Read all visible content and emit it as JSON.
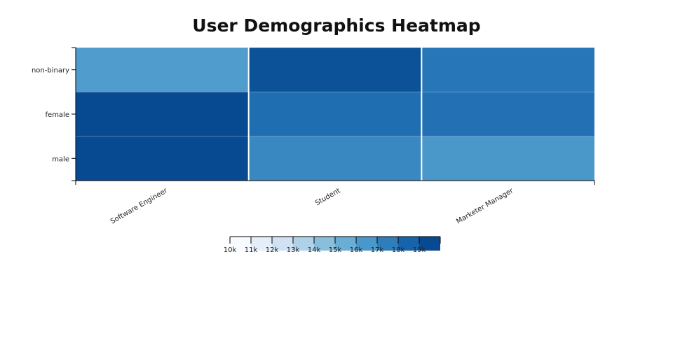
{
  "chart_data": {
    "type": "heatmap",
    "title": "User Demographics Heatmap",
    "x_categories": [
      "Software Engineer",
      "Student",
      "Marketer Manager"
    ],
    "y_categories": [
      "male",
      "female",
      "non-binary"
    ],
    "values": [
      [
        19700,
        17100,
        16500
      ],
      [
        19800,
        18100,
        18000
      ],
      [
        16300,
        19200,
        17800
      ]
    ],
    "legend": {
      "ticks": [
        "10k",
        "11k",
        "12k",
        "13k",
        "14k",
        "15k",
        "16k",
        "17k",
        "18k",
        "19k"
      ],
      "domain": [
        10000,
        20000
      ],
      "colors": [
        "#f7fbff",
        "#e3eef9",
        "#cfe1f2",
        "#b0d2e8",
        "#89bedc",
        "#6aaed6",
        "#4a98c9",
        "#2e7ebc",
        "#1764ab",
        "#084a91"
      ],
      "placement": "bottom-center"
    },
    "xlabel": "",
    "ylabel": ""
  }
}
